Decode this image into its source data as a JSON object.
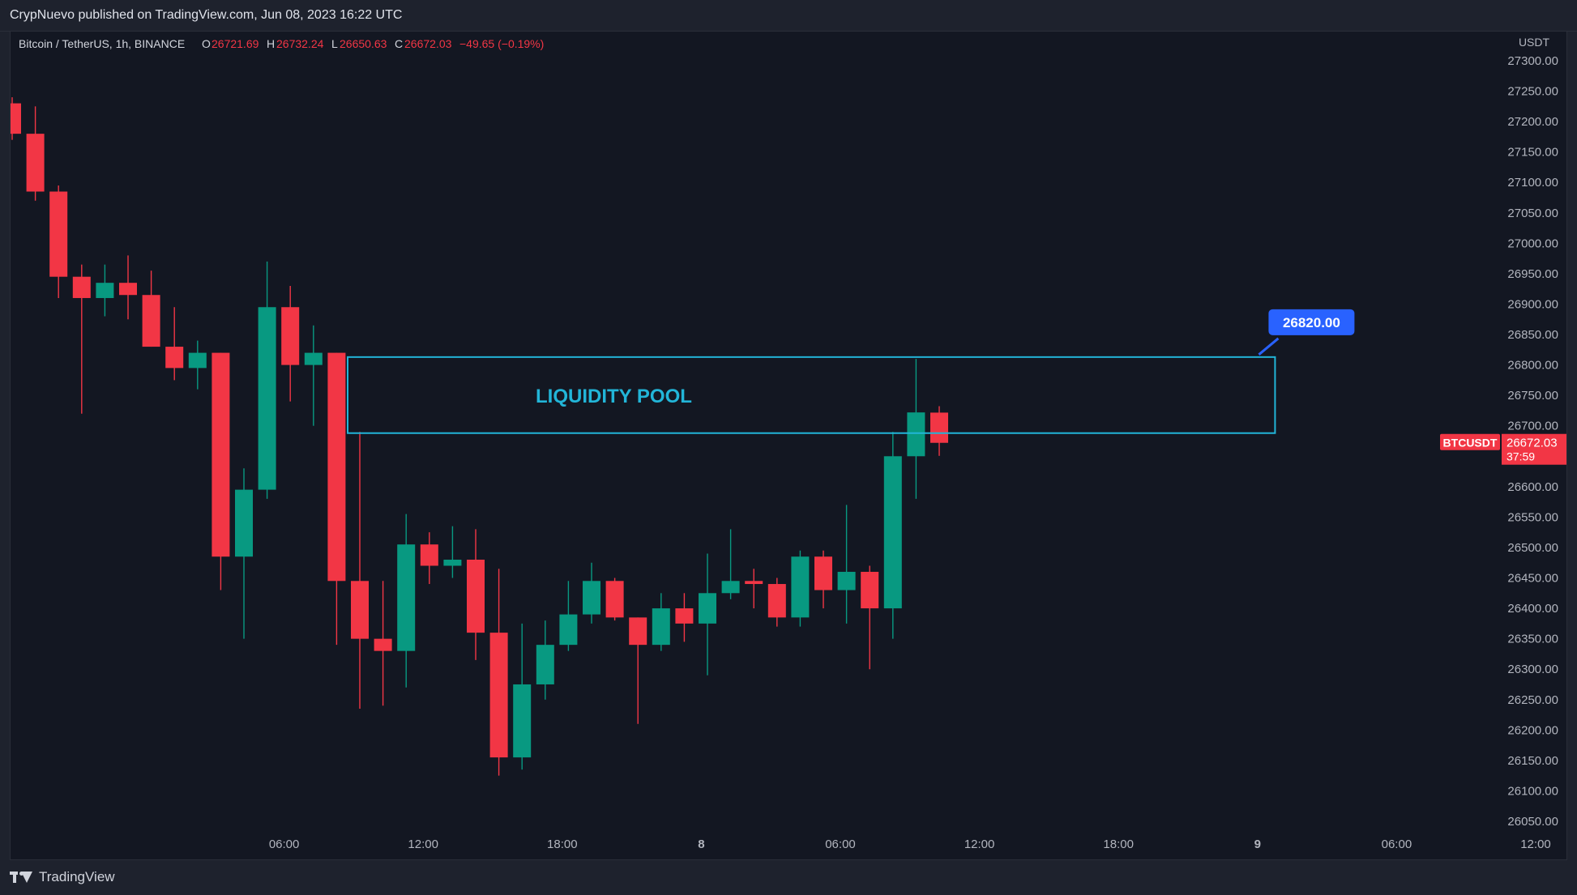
{
  "header": {
    "publisher": "CrypNuevo published on TradingView.com, Jun 08, 2023 16:22 UTC"
  },
  "footer": {
    "brand": "TradingView"
  },
  "colors": {
    "up": "#089981",
    "down": "#f23645",
    "zone": "#22b5d8",
    "callout": "#2962ff",
    "grid_text": "#b2b5be",
    "background": "#131722"
  },
  "chart_data": {
    "type": "candlestick",
    "legend": {
      "symbol": "Bitcoin / TetherUS, 1h, BINANCE",
      "o_label": "O",
      "o_value": "26721.69",
      "h_label": "H",
      "h_value": "26732.24",
      "l_label": "L",
      "l_value": "26650.63",
      "c_label": "C",
      "c_value": "26672.03",
      "change": "−49.65 (−0.19%)"
    },
    "currency": "USDT",
    "y_ticks": [
      "27300.00",
      "27250.00",
      "27200.00",
      "27150.00",
      "27100.00",
      "27050.00",
      "27000.00",
      "26950.00",
      "26900.00",
      "26850.00",
      "26800.00",
      "26750.00",
      "26700.00",
      "26650.00",
      "26600.00",
      "26550.00",
      "26500.00",
      "26450.00",
      "26400.00",
      "26350.00",
      "26300.00",
      "26250.00",
      "26200.00",
      "26150.00",
      "26100.00",
      "26050.00"
    ],
    "y_tick_values": [
      27300,
      27250,
      27200,
      27150,
      27100,
      27050,
      27000,
      26950,
      26900,
      26850,
      26800,
      26750,
      26700,
      26650,
      26600,
      26550,
      26500,
      26450,
      26400,
      26350,
      26300,
      26250,
      26200,
      26150,
      26100,
      26050
    ],
    "x_ticks": [
      {
        "label": "06:00",
        "bar": 6,
        "bold": false
      },
      {
        "label": "12:00",
        "bar": 12,
        "bold": false
      },
      {
        "label": "18:00",
        "bar": 18,
        "bold": false
      },
      {
        "label": "8",
        "bar": 24,
        "bold": true
      },
      {
        "label": "06:00",
        "bar": 30,
        "bold": false
      },
      {
        "label": "12:00",
        "bar": 36,
        "bold": false
      },
      {
        "label": "18:00",
        "bar": 42,
        "bold": false
      },
      {
        "label": "9",
        "bar": 48,
        "bold": true
      },
      {
        "label": "06:00",
        "bar": 54,
        "bold": false
      },
      {
        "label": "12:00",
        "bar": 60,
        "bold": false
      }
    ],
    "candles": [
      {
        "o": 27230,
        "h": 27240,
        "l": 27170,
        "c": 27180
      },
      {
        "o": 27180,
        "h": 27225,
        "l": 27070,
        "c": 27085
      },
      {
        "o": 27085,
        "h": 27095,
        "l": 26910,
        "c": 26945
      },
      {
        "o": 26945,
        "h": 26965,
        "l": 26720,
        "c": 26910
      },
      {
        "o": 26910,
        "h": 26965,
        "l": 26880,
        "c": 26935
      },
      {
        "o": 26935,
        "h": 26980,
        "l": 26875,
        "c": 26915
      },
      {
        "o": 26915,
        "h": 26955,
        "l": 26830,
        "c": 26830
      },
      {
        "o": 26830,
        "h": 26895,
        "l": 26775,
        "c": 26795
      },
      {
        "o": 26795,
        "h": 26840,
        "l": 26760,
        "c": 26820
      },
      {
        "o": 26820,
        "h": 26820,
        "l": 26430,
        "c": 26485
      },
      {
        "o": 26485,
        "h": 26630,
        "l": 26350,
        "c": 26595
      },
      {
        "o": 26595,
        "h": 26970,
        "l": 26580,
        "c": 26895
      },
      {
        "o": 26895,
        "h": 26930,
        "l": 26740,
        "c": 26800
      },
      {
        "o": 26800,
        "h": 26865,
        "l": 26700,
        "c": 26820
      },
      {
        "o": 26820,
        "h": 26820,
        "l": 26340,
        "c": 26445
      },
      {
        "o": 26445,
        "h": 26690,
        "l": 26235,
        "c": 26350
      },
      {
        "o": 26350,
        "h": 26445,
        "l": 26240,
        "c": 26330
      },
      {
        "o": 26330,
        "h": 26555,
        "l": 26270,
        "c": 26505
      },
      {
        "o": 26505,
        "h": 26525,
        "l": 26440,
        "c": 26470
      },
      {
        "o": 26470,
        "h": 26535,
        "l": 26450,
        "c": 26480
      },
      {
        "o": 26480,
        "h": 26530,
        "l": 26315,
        "c": 26360
      },
      {
        "o": 26360,
        "h": 26465,
        "l": 26125,
        "c": 26155
      },
      {
        "o": 26155,
        "h": 26375,
        "l": 26135,
        "c": 26275
      },
      {
        "o": 26275,
        "h": 26380,
        "l": 26250,
        "c": 26340
      },
      {
        "o": 26340,
        "h": 26445,
        "l": 26330,
        "c": 26390
      },
      {
        "o": 26390,
        "h": 26475,
        "l": 26375,
        "c": 26445
      },
      {
        "o": 26445,
        "h": 26450,
        "l": 26380,
        "c": 26385
      },
      {
        "o": 26385,
        "h": 26385,
        "l": 26210,
        "c": 26340
      },
      {
        "o": 26340,
        "h": 26425,
        "l": 26330,
        "c": 26400
      },
      {
        "o": 26400,
        "h": 26425,
        "l": 26345,
        "c": 26375
      },
      {
        "o": 26375,
        "h": 26490,
        "l": 26290,
        "c": 26425
      },
      {
        "o": 26425,
        "h": 26530,
        "l": 26415,
        "c": 26445
      },
      {
        "o": 26445,
        "h": 26465,
        "l": 26400,
        "c": 26440
      },
      {
        "o": 26440,
        "h": 26450,
        "l": 26370,
        "c": 26385
      },
      {
        "o": 26385,
        "h": 26495,
        "l": 26370,
        "c": 26485
      },
      {
        "o": 26485,
        "h": 26495,
        "l": 26400,
        "c": 26430
      },
      {
        "o": 26430,
        "h": 26570,
        "l": 26375,
        "c": 26460
      },
      {
        "o": 26460,
        "h": 26470,
        "l": 26300,
        "c": 26400
      },
      {
        "o": 26400,
        "h": 26690,
        "l": 26350,
        "c": 26650
      },
      {
        "o": 26650,
        "h": 26810,
        "l": 26580,
        "c": 26722
      },
      {
        "o": 26721.69,
        "h": 26732.24,
        "l": 26650.63,
        "c": 26672.03
      }
    ],
    "last_price_label": {
      "symbol": "BTCUSDT",
      "price": "26672.03",
      "countdown": "37:59",
      "value": 26672.03
    },
    "zone": {
      "label": "LIQUIDITY POOL",
      "top": 26813,
      "bottom": 26688,
      "start_bar": 15,
      "end_bar": 54
    },
    "callout": {
      "label": "26820.00",
      "value": 26820
    }
  }
}
